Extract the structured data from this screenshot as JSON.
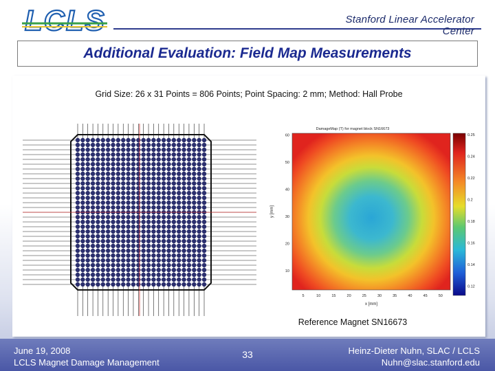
{
  "header": {
    "logo_text": "LCLS",
    "organization": "Stanford Linear Accelerator Center"
  },
  "slide": {
    "title": "Additional Evaluation: Field Map Measurements",
    "grid_caption": "Grid Size: 26 x 31 Points = 806 Points; Point Spacing: 2 mm; Method: Hall Probe",
    "reference_caption": "Reference Magnet SN16673"
  },
  "field_map": {
    "plot_title": "DamageMap (T) for magnet block SN16673",
    "xlabel": "x [mm]",
    "ylabel": "y [mm]",
    "x_ticks": [
      "5",
      "10",
      "15",
      "20",
      "25",
      "30",
      "35",
      "40",
      "45",
      "50"
    ],
    "y_ticks": [
      "10",
      "20",
      "30",
      "40",
      "50",
      "60"
    ],
    "colorbar_ticks": [
      "0.25",
      "0.24",
      "0.22",
      "0.2",
      "0.18",
      "0.16",
      "0.14",
      "0.12"
    ]
  },
  "footer": {
    "date": "June 19, 2008",
    "topic": "LCLS Magnet Damage Management",
    "page_number": "33",
    "author": "Heinz-Dieter Nuhn, SLAC / LCLS",
    "email": "Nuhn@slac.stanford.edu"
  },
  "colors": {
    "title": "#1b2a90",
    "logo_blue": "#1f5fb0",
    "logo_green": "#3aa048",
    "footer_band": "#4a57a6"
  }
}
